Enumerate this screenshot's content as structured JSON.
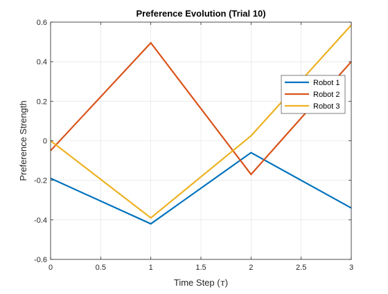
{
  "chart_data": {
    "type": "line",
    "title": "Preference Evolution (Trial 10)",
    "xlabel": "Time Step (",
    "xlabel_symbol": "τ",
    "xlabel_close": ")",
    "ylabel": "Preference Strength",
    "xlim": [
      0,
      3
    ],
    "ylim": [
      -0.6,
      0.6
    ],
    "xticks": [
      0,
      0.5,
      1,
      1.5,
      2,
      2.5,
      3
    ],
    "xtick_labels": [
      "0",
      "0.5",
      "1",
      "1.5",
      "2",
      "2.5",
      "3"
    ],
    "yticks": [
      -0.6,
      -0.4,
      -0.2,
      0,
      0.2,
      0.4,
      0.6
    ],
    "ytick_labels": [
      "-0.6",
      "-0.4",
      "-0.2",
      "0",
      "0.2",
      "0.4",
      "0.6"
    ],
    "grid": true,
    "legend_position": "right",
    "x": [
      0,
      1,
      2,
      3
    ],
    "series": [
      {
        "name": "Robot 1",
        "color": "#0072BD",
        "values": [
          -0.19,
          -0.42,
          -0.06,
          -0.34
        ]
      },
      {
        "name": "Robot 2",
        "color": "#D95319",
        "values": [
          -0.05,
          0.495,
          -0.17,
          0.4
        ]
      },
      {
        "name": "Robot 3",
        "color": "#EDB120",
        "values": [
          0.0,
          -0.39,
          0.025,
          0.585
        ]
      }
    ]
  }
}
